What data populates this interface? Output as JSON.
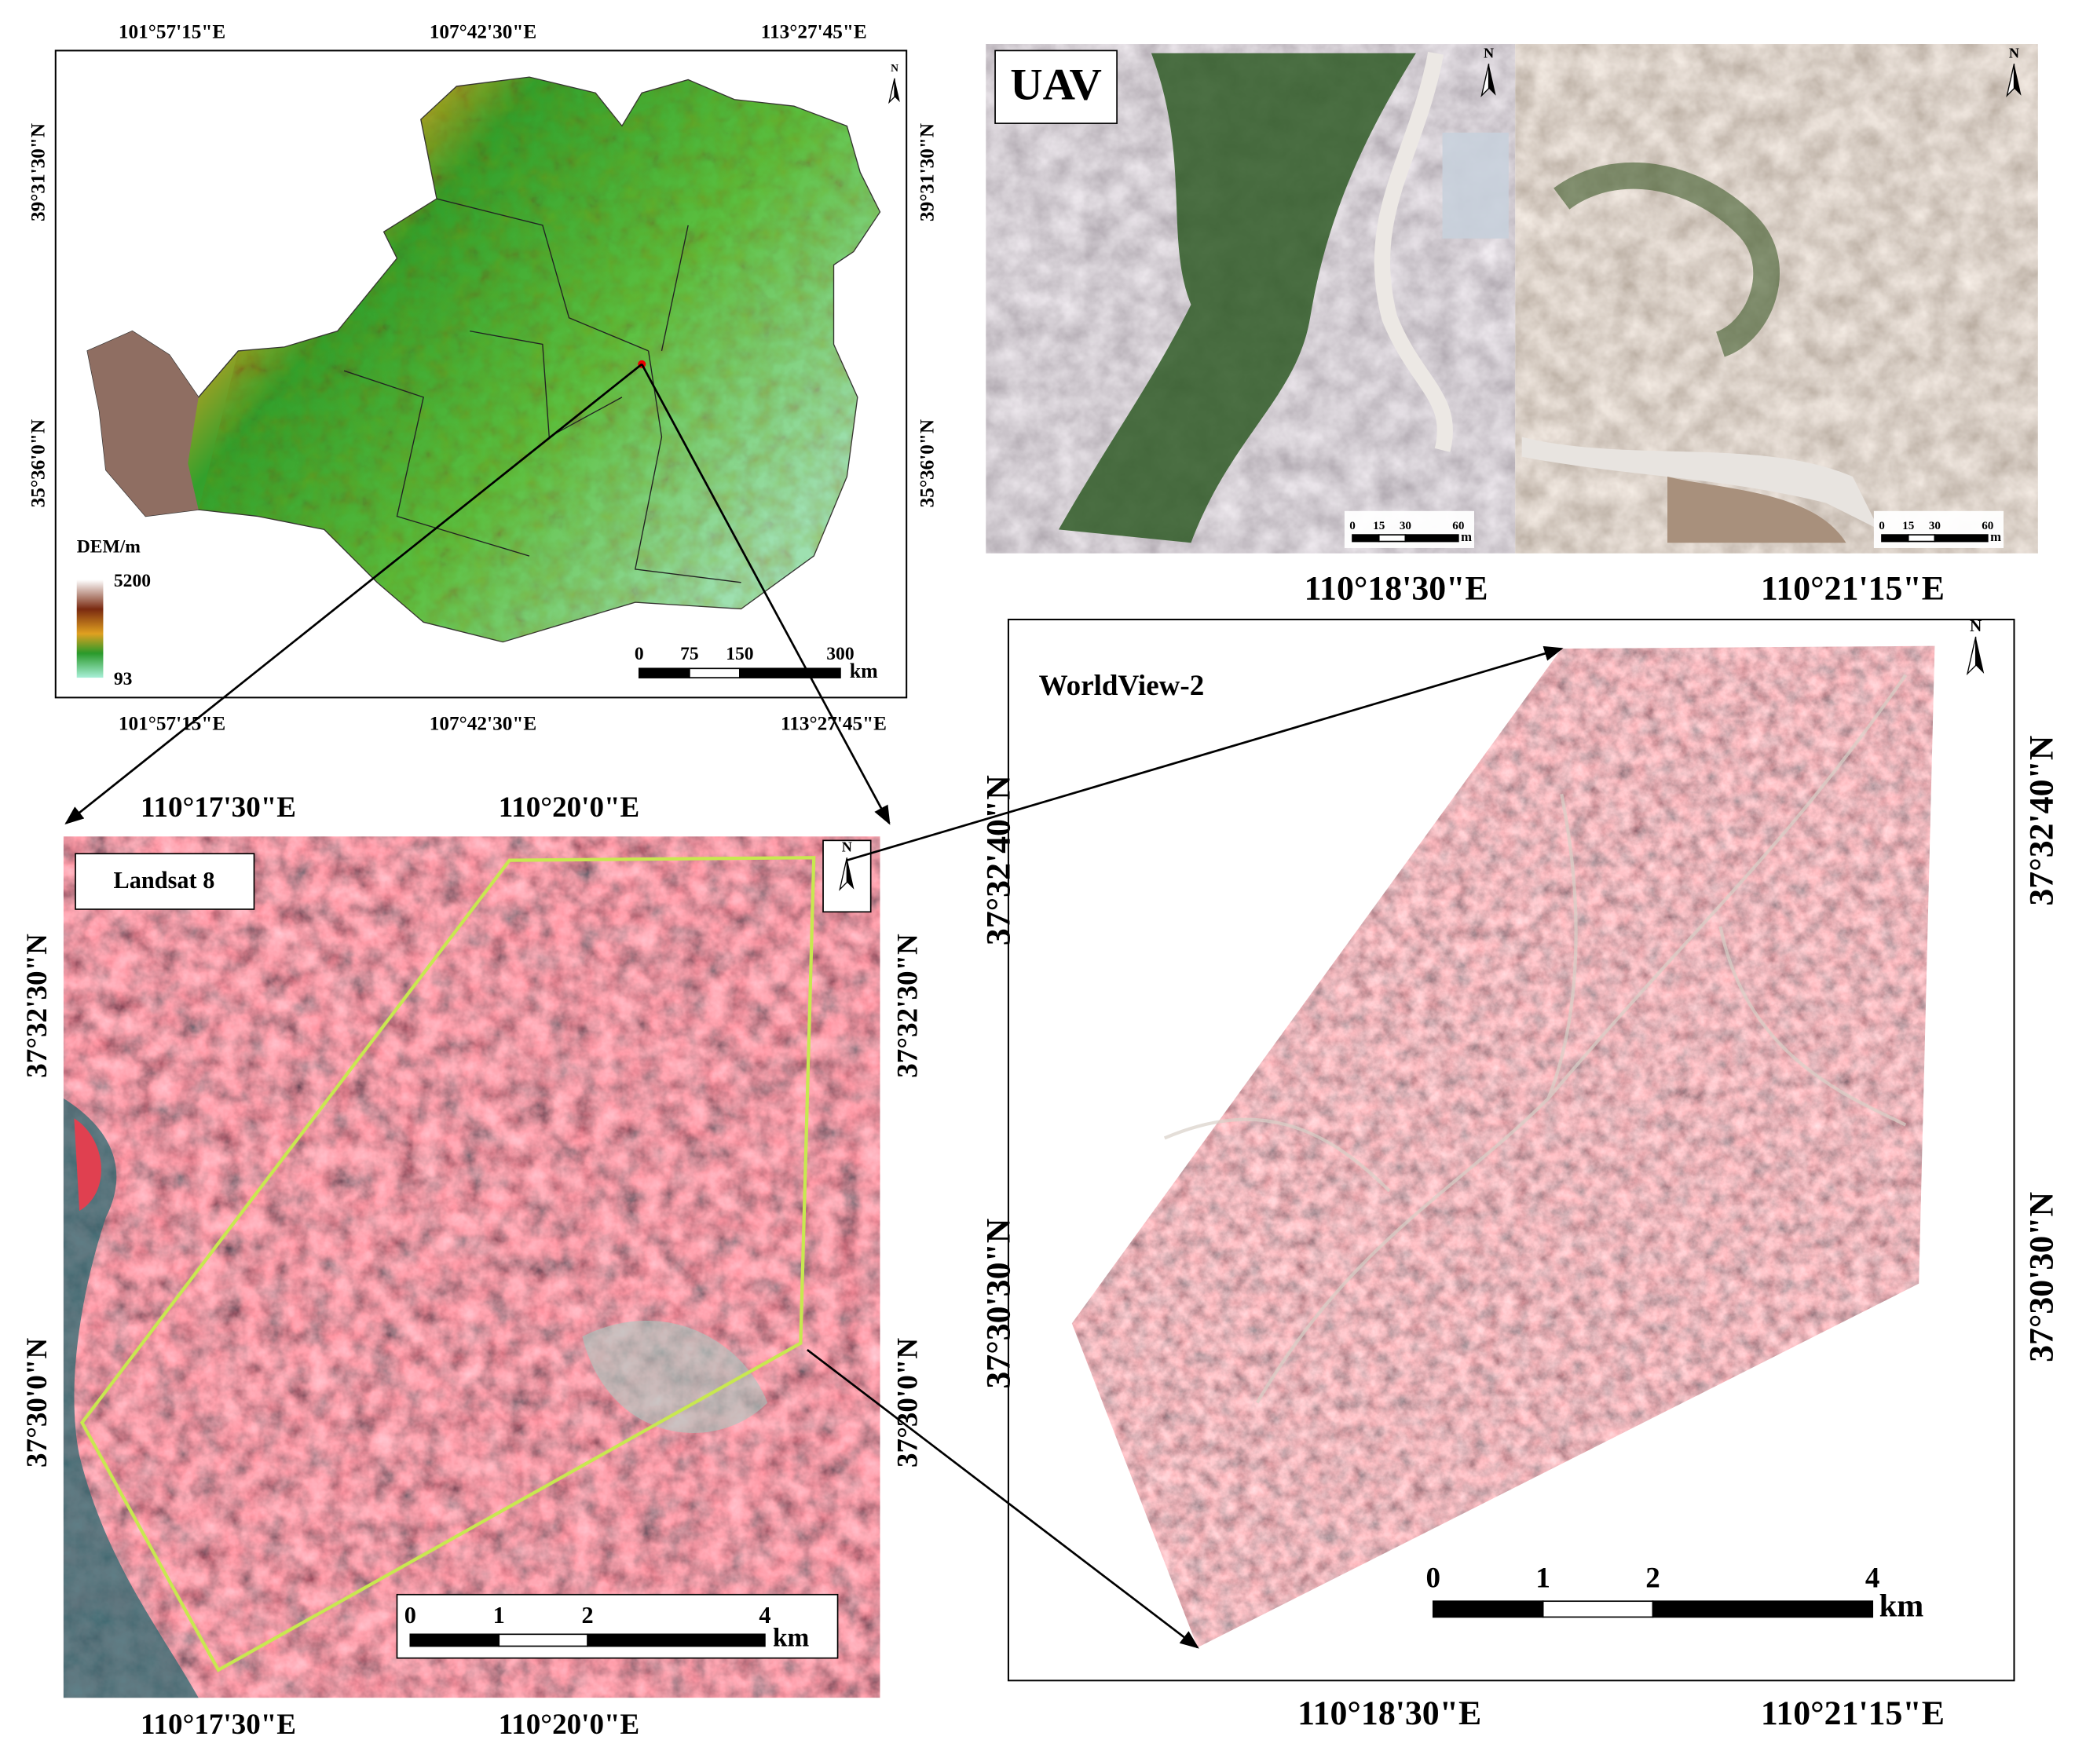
{
  "dem_map": {
    "top_labels": [
      "101°57'15\"E",
      "107°42'30\"E",
      "113°27'45\"E"
    ],
    "bottom_labels": [
      "101°57'15\"E",
      "107°42'30\"E",
      "113°27'45\"E"
    ],
    "left_labels": [
      "39°31'30\"N",
      "35°36'0\"N"
    ],
    "right_labels": [
      "39°31'30\"N",
      "35°36'0\"N"
    ],
    "legend": {
      "title": "DEM/m",
      "max": "5200",
      "min": "93"
    },
    "scale_bar": {
      "labels": [
        "0",
        "75",
        "150",
        "300"
      ],
      "unit": "km"
    },
    "north": "N"
  },
  "uav": {
    "title": "UAV",
    "panels": [
      {
        "north": "N",
        "scale_bar": {
          "labels": [
            "0",
            "15",
            "30",
            "60"
          ],
          "unit": "m"
        }
      },
      {
        "north": "N",
        "scale_bar": {
          "labels": [
            "0",
            "15",
            "30",
            "60"
          ],
          "unit": "m"
        }
      }
    ]
  },
  "worldview": {
    "title": "WorldView-2",
    "top_labels": [
      "110°18'30\"E",
      "110°21'15\"E"
    ],
    "bottom_labels": [
      "110°18'30\"E",
      "110°21'15\"E"
    ],
    "left_labels": [
      "37°32'40\"N",
      "37°30'30\"N"
    ],
    "right_labels": [
      "37°32'40\"N",
      "37°30'30\"N"
    ],
    "scale_bar": {
      "labels": [
        "0",
        "1",
        "2",
        "4"
      ],
      "unit": "km"
    },
    "north": "N"
  },
  "landsat": {
    "title": "Landsat 8",
    "top_labels": [
      "110°17'30\"E",
      "110°20'0\"E"
    ],
    "bottom_labels": [
      "110°17'30\"E",
      "110°20'0\"E"
    ],
    "left_labels": [
      "37°32'30\"N",
      "37°30'0\"N"
    ],
    "right_labels": [
      "37°32'30\"N",
      "37°30'0\"N"
    ],
    "scale_bar": {
      "labels": [
        "0",
        "1",
        "2",
        "4"
      ],
      "unit": "km"
    },
    "north": "N"
  }
}
